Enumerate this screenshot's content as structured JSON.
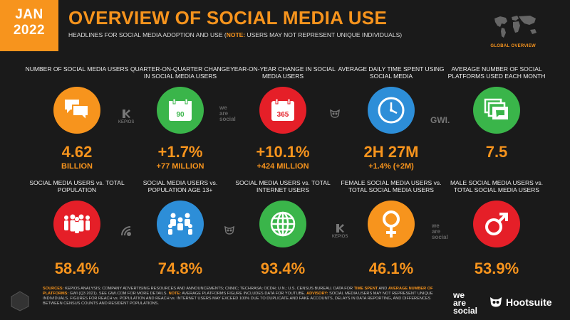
{
  "header": {
    "month": "JAN",
    "year": "2022",
    "title": "OVERVIEW OF SOCIAL MEDIA USE",
    "subtitle_main": "HEADLINES FOR SOCIAL MEDIA ADOPTION AND USE (",
    "subtitle_note": "NOTE:",
    "subtitle_rest": " USERS MAY NOT REPRESENT UNIQUE INDIVIDUALS)",
    "map_label": "GLOBAL OVERVIEW"
  },
  "row1": [
    {
      "label": "NUMBER OF SOCIAL MEDIA USERS",
      "value": "4.62",
      "sub": "BILLION",
      "icon": "chat-bubbles-icon",
      "color": "#f7941d"
    },
    {
      "label": "QUARTER-ON-QUARTER CHANGE IN SOCIAL MEDIA USERS",
      "value": "+1.7%",
      "sub": "+77 MILLION",
      "icon": "calendar-icon",
      "icon_text": "90",
      "color": "#3ab54a"
    },
    {
      "label": "YEAR-ON-YEAR CHANGE IN SOCIAL MEDIA USERS",
      "value": "+10.1%",
      "sub": "+424 MILLION",
      "icon": "calendar-icon",
      "icon_text": "365",
      "color": "#e51f28"
    },
    {
      "label": "AVERAGE DAILY TIME SPENT USING SOCIAL MEDIA",
      "value": "2H 27M",
      "sub": "+1.4% (+2M)",
      "icon": "clock-icon",
      "color": "#2d8ed8"
    },
    {
      "label": "AVERAGE NUMBER OF SOCIAL PLATFORMS USED EACH MONTH",
      "value": "7.5",
      "sub": "",
      "icon": "stacked-windows-icon",
      "color": "#3ab54a"
    }
  ],
  "row2": [
    {
      "label": "SOCIAL MEDIA USERS vs. TOTAL POPULATION",
      "value": "58.4%",
      "icon": "crowd-icon",
      "color": "#e51f28"
    },
    {
      "label": "SOCIAL MEDIA USERS vs. POPULATION AGE 13+",
      "value": "74.8%",
      "icon": "people-group-icon",
      "color": "#2d8ed8"
    },
    {
      "label": "SOCIAL MEDIA USERS vs. TOTAL INTERNET USERS",
      "value": "93.4%",
      "icon": "globe-icon",
      "color": "#3ab54a"
    },
    {
      "label": "FEMALE SOCIAL MEDIA USERS vs. TOTAL SOCIAL MEDIA USERS",
      "value": "46.1%",
      "icon": "female-icon",
      "color": "#f7941d"
    },
    {
      "label": "MALE SOCIAL MEDIA USERS vs. TOTAL SOCIAL MEDIA USERS",
      "value": "53.9%",
      "icon": "male-icon",
      "color": "#e51f28"
    }
  ],
  "brands": {
    "kepios": "KEPIOS",
    "gwi": "GWI.",
    "we": "we",
    "are": "are",
    "social": "social",
    "hootsuite": "Hootsuite"
  },
  "footer": {
    "sources_label": "SOURCES:",
    "sources_text": " KEPIOS ANALYSIS; COMPANY ADVERTISING RESOURCES AND ANNOUNCEMENTS; CNNIC; TECHRASA; OCDH; U.N.; U.S. CENSUS BUREAU. DATA FOR ",
    "time_spent": "TIME SPENT",
    "and": " AND ",
    "avg_platforms": "AVERAGE NUMBER OF PLATFORMS:",
    "gwi_text": " GWI (Q3 2021). SEE GWI.COM FOR MORE DETAILS. ",
    "note_label": "NOTE:",
    "note_text": " AVERAGE PLATFORMS FIGURE INCLUDES DATA FOR YOUTUBE. ",
    "advisory_label": "ADVISORY:",
    "advisory_text": " SOCIAL MEDIA USERS MAY NOT REPRESENT UNIQUE INDIVIDUALS. FIGURES FOR REACH vs. POPULATION AND REACH vs. INTERNET USERS MAY EXCEED 100% DUE TO DUPLICATE AND FAKE ACCOUNTS, DELAYS IN DATA REPORTING, AND DIFFERENCES BETWEEN CENSUS COUNTS AND RESIDENT POPULATIONS."
  }
}
